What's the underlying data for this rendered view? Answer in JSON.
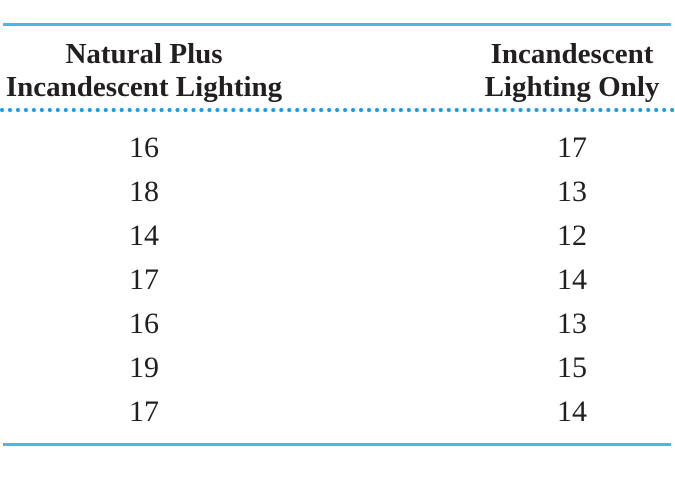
{
  "colors": {
    "rule_blue": "#45b9ea",
    "dot_blue": "#189ee5",
    "text_color": "#231f20"
  },
  "table": {
    "columns": [
      {
        "header_line1": "Natural Plus",
        "header_line2": "Incandescent Lighting"
      },
      {
        "header_line1": "Incandescent",
        "header_line2": "Lighting Only"
      }
    ],
    "rows": [
      {
        "natural_plus_incandescent": "16",
        "incandescent_only": "17"
      },
      {
        "natural_plus_incandescent": "18",
        "incandescent_only": "13"
      },
      {
        "natural_plus_incandescent": "14",
        "incandescent_only": "12"
      },
      {
        "natural_plus_incandescent": "17",
        "incandescent_only": "14"
      },
      {
        "natural_plus_incandescent": "16",
        "incandescent_only": "13"
      },
      {
        "natural_plus_incandescent": "19",
        "incandescent_only": "15"
      },
      {
        "natural_plus_incandescent": "17",
        "incandescent_only": "14"
      }
    ]
  },
  "chart_data": {
    "type": "table",
    "columns": [
      "Natural Plus Incandescent Lighting",
      "Incandescent Lighting Only"
    ],
    "rows": [
      [
        16,
        17
      ],
      [
        18,
        13
      ],
      [
        14,
        12
      ],
      [
        17,
        14
      ],
      [
        16,
        13
      ],
      [
        19,
        15
      ],
      [
        17,
        14
      ]
    ]
  }
}
